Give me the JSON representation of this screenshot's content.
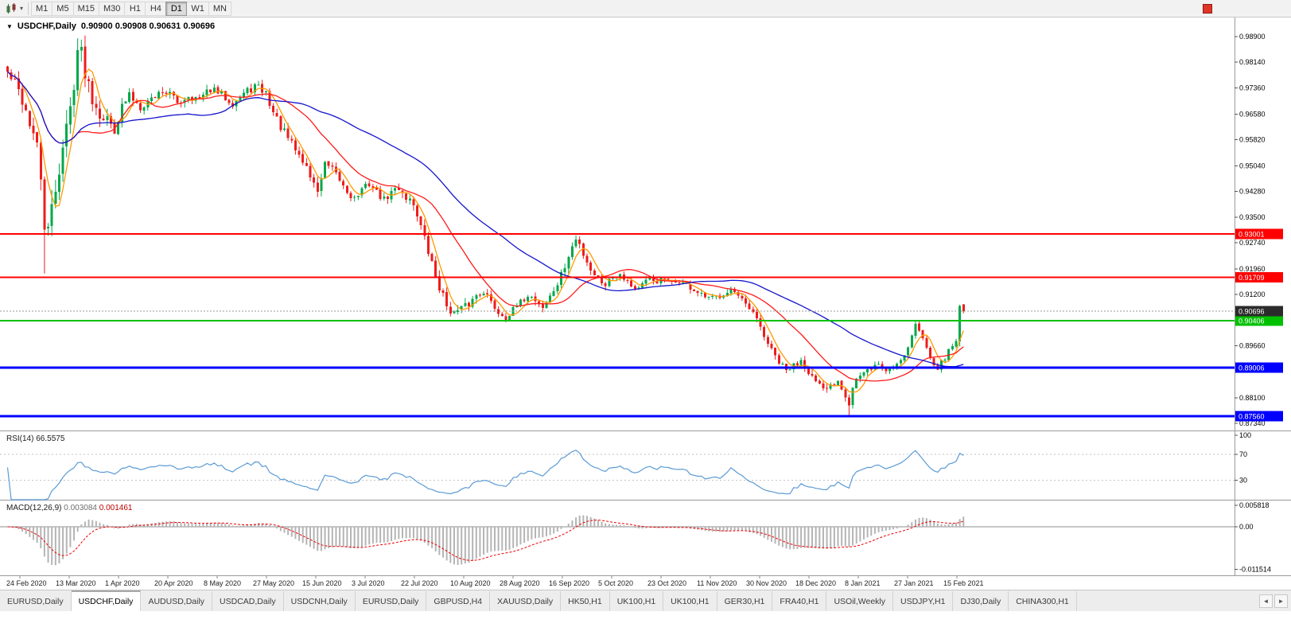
{
  "icons": {
    "dropdown_caret": "▾",
    "collapse_arrow": "▼",
    "scroll_left": "◄",
    "scroll_right": "►"
  },
  "toolbar": {
    "timeframes": [
      "M1",
      "M5",
      "M15",
      "M30",
      "H1",
      "H4",
      "D1",
      "W1",
      "MN"
    ],
    "active_timeframe": "D1"
  },
  "chart": {
    "symbol": "USDCHF,Daily",
    "ohlc_text": "0.90900 0.90908 0.90631 0.90696"
  },
  "indicators": {
    "rsi": {
      "label": "RSI(14)",
      "value_text": "66.5575"
    },
    "macd": {
      "label": "MACD(12,26,9)",
      "macd_value": "0.003084",
      "signal_value": "0.001461"
    }
  },
  "tabbar": {
    "active_index": 1,
    "tabs": [
      "EURUSD,Daily",
      "USDCHF,Daily",
      "AUDUSD,Daily",
      "USDCAD,Daily",
      "USDCNH,Daily",
      "EURUSD,Daily",
      "GBPUSD,H4",
      "XAUUSD,Daily",
      "HK50,H1",
      "UK100,H1",
      "UK100,H1",
      "GER30,H1",
      "FRA40,H1",
      "USOil,Weekly",
      "USDJPY,H1",
      "DJ30,Daily",
      "CHINA300,H1"
    ]
  },
  "chart_data": {
    "type": "candlestick",
    "symbol": "USDCHF",
    "timeframe": "Daily",
    "n_candles": 260,
    "ylim": [
      0.8713,
      0.9947
    ],
    "colors": {
      "bull": "#00a84a",
      "bear": "#ee1c1c",
      "bid_line": "#999999",
      "bid_tag": "#2b2b2b"
    },
    "price_ticks": [
      "0.98900",
      "0.98140",
      "0.97360",
      "0.96580",
      "0.95820",
      "0.95040",
      "0.94280",
      "0.93500",
      "0.92740",
      "0.91960",
      "0.91200",
      "0.89660",
      "0.88100",
      "0.87340"
    ],
    "date_labels": [
      "24 Feb 2020",
      "13 Mar 2020",
      "1 Apr 2020",
      "20 Apr 2020",
      "8 May 2020",
      "27 May 2020",
      "15 Jun 2020",
      "3 Jul 2020",
      "22 Jul 2020",
      "10 Aug 2020",
      "28 Aug 2020",
      "16 Sep 2020",
      "5 Oct 2020",
      "23 Oct 2020",
      "11 Nov 2020",
      "30 Nov 2020",
      "18 Dec 2020",
      "8 Jan 2021",
      "27 Jan 2021",
      "15 Feb 2021"
    ],
    "hlines": [
      {
        "price": 0.93001,
        "label": "0.93001",
        "color": "#ff0000",
        "width": 2
      },
      {
        "price": 0.91709,
        "label": "0.91709",
        "color": "#ff0000",
        "width": 2
      },
      {
        "price": 0.90406,
        "label": "0.90406",
        "color": "#00c000",
        "width": 2
      },
      {
        "price": 0.89006,
        "label": "0.89006",
        "color": "#0000ff",
        "width": 3
      },
      {
        "price": 0.8756,
        "label": "0.87560",
        "color": "#0000ff",
        "width": 3
      }
    ],
    "bid": {
      "price": 0.90696,
      "label": "0.90696"
    },
    "last_bar": {
      "open": 0.909,
      "high": 0.90908,
      "low": 0.90631,
      "close": 0.90696
    },
    "close_waypoints": [
      [
        0,
        0.9782
      ],
      [
        2,
        0.9748
      ],
      [
        4,
        0.9702
      ],
      [
        6,
        0.9635
      ],
      [
        8,
        0.9552
      ],
      [
        9,
        0.9465
      ],
      [
        10,
        0.933
      ],
      [
        11,
        0.9295
      ],
      [
        12,
        0.9372
      ],
      [
        13,
        0.944
      ],
      [
        15,
        0.9558
      ],
      [
        17,
        0.9675
      ],
      [
        19,
        0.9852
      ],
      [
        20,
        0.9838
      ],
      [
        21,
        0.9792
      ],
      [
        23,
        0.9712
      ],
      [
        25,
        0.9665
      ],
      [
        27,
        0.9641
      ],
      [
        29,
        0.9617
      ],
      [
        31,
        0.9678
      ],
      [
        33,
        0.9714
      ],
      [
        36,
        0.9682
      ],
      [
        39,
        0.9705
      ],
      [
        42,
        0.9729
      ],
      [
        44,
        0.9719
      ],
      [
        46,
        0.9691
      ],
      [
        49,
        0.9714
      ],
      [
        52,
        0.9701
      ],
      [
        55,
        0.9733
      ],
      [
        58,
        0.9716
      ],
      [
        61,
        0.9692
      ],
      [
        64,
        0.9719
      ],
      [
        67,
        0.9742
      ],
      [
        70,
        0.9721
      ],
      [
        72,
        0.9663
      ],
      [
        75,
        0.9601
      ],
      [
        78,
        0.9552
      ],
      [
        81,
        0.9501
      ],
      [
        83,
        0.9447
      ],
      [
        84,
        0.9432
      ],
      [
        85,
        0.9468
      ],
      [
        86,
        0.9507
      ],
      [
        88,
        0.9489
      ],
      [
        90,
        0.9461
      ],
      [
        92,
        0.9427
      ],
      [
        94,
        0.9406
      ],
      [
        96,
        0.9431
      ],
      [
        98,
        0.9452
      ],
      [
        100,
        0.9426
      ],
      [
        102,
        0.9401
      ],
      [
        104,
        0.9424
      ],
      [
        106,
        0.9439
      ],
      [
        108,
        0.9412
      ],
      [
        110,
        0.9391
      ],
      [
        111,
        0.9362
      ],
      [
        113,
        0.9282
      ],
      [
        115,
        0.9211
      ],
      [
        117,
        0.9142
      ],
      [
        119,
        0.9087
      ],
      [
        121,
        0.9062
      ],
      [
        123,
        0.9076
      ],
      [
        125,
        0.9091
      ],
      [
        127,
        0.9118
      ],
      [
        129,
        0.9133
      ],
      [
        131,
        0.9096
      ],
      [
        133,
        0.9066
      ],
      [
        135,
        0.9052
      ],
      [
        137,
        0.9071
      ],
      [
        139,
        0.9094
      ],
      [
        141,
        0.9119
      ],
      [
        143,
        0.9104
      ],
      [
        145,
        0.9081
      ],
      [
        147,
        0.9112
      ],
      [
        149,
        0.9151
      ],
      [
        151,
        0.9202
      ],
      [
        153,
        0.9261
      ],
      [
        154,
        0.9283
      ],
      [
        155,
        0.9268
      ],
      [
        156,
        0.9241
      ],
      [
        158,
        0.9196
      ],
      [
        160,
        0.9166
      ],
      [
        162,
        0.9151
      ],
      [
        164,
        0.9174
      ],
      [
        166,
        0.9184
      ],
      [
        168,
        0.9161
      ],
      [
        170,
        0.9136
      ],
      [
        172,
        0.9149
      ],
      [
        174,
        0.9164
      ],
      [
        176,
        0.9159
      ],
      [
        178,
        0.9164
      ],
      [
        180,
        0.9151
      ],
      [
        182,
        0.9161
      ],
      [
        184,
        0.9146
      ],
      [
        186,
        0.9131
      ],
      [
        188,
        0.9116
      ],
      [
        190,
        0.9106
      ],
      [
        192,
        0.9111
      ],
      [
        194,
        0.9124
      ],
      [
        196,
        0.9136
      ],
      [
        198,
        0.9111
      ],
      [
        200,
        0.9086
      ],
      [
        202,
        0.9061
      ],
      [
        204,
        0.9021
      ],
      [
        205,
        0.8996
      ],
      [
        207,
        0.8951
      ],
      [
        209,
        0.8916
      ],
      [
        211,
        0.8891
      ],
      [
        213,
        0.8906
      ],
      [
        215,
        0.8926
      ],
      [
        217,
        0.8891
      ],
      [
        219,
        0.8856
      ],
      [
        221,
        0.8831
      ],
      [
        223,
        0.8846
      ],
      [
        225,
        0.8866
      ],
      [
        227,
        0.8821
      ],
      [
        228,
        0.8792
      ],
      [
        229,
        0.8841
      ],
      [
        230,
        0.8866
      ],
      [
        232,
        0.8881
      ],
      [
        234,
        0.8901
      ],
      [
        236,
        0.8911
      ],
      [
        238,
        0.8891
      ],
      [
        240,
        0.8906
      ],
      [
        242,
        0.8926
      ],
      [
        244,
        0.8961
      ],
      [
        245,
        0.9001
      ],
      [
        246,
        0.9031
      ],
      [
        247,
        0.9011
      ],
      [
        248,
        0.8986
      ],
      [
        249,
        0.8961
      ],
      [
        250,
        0.8936
      ],
      [
        251,
        0.8916
      ],
      [
        252,
        0.8901
      ],
      [
        253,
        0.8916
      ],
      [
        254,
        0.8931
      ],
      [
        255,
        0.8951
      ],
      [
        256,
        0.8966
      ],
      [
        257,
        0.8981
      ],
      [
        258,
        0.9085
      ],
      [
        259,
        0.90696
      ]
    ],
    "volatility_waypoints": [
      [
        0,
        0.0045
      ],
      [
        8,
        0.0075
      ],
      [
        12,
        0.009
      ],
      [
        20,
        0.008
      ],
      [
        26,
        0.0052
      ],
      [
        35,
        0.0033
      ],
      [
        60,
        0.0028
      ],
      [
        72,
        0.0036
      ],
      [
        85,
        0.0033
      ],
      [
        100,
        0.0026
      ],
      [
        112,
        0.0042
      ],
      [
        120,
        0.0032
      ],
      [
        140,
        0.0026
      ],
      [
        152,
        0.0032
      ],
      [
        165,
        0.0024
      ],
      [
        180,
        0.0022
      ],
      [
        200,
        0.0024
      ],
      [
        212,
        0.0028
      ],
      [
        226,
        0.0026
      ],
      [
        240,
        0.002
      ],
      [
        250,
        0.0022
      ],
      [
        259,
        0.0018
      ]
    ],
    "pinned_candles": {
      "10": {
        "low": 0.9182
      },
      "19": {
        "high": 0.9885
      },
      "154": {
        "high": 0.9296
      },
      "177": {
        "high": 0.9171
      },
      "179": {
        "high": 0.9173
      },
      "228": {
        "low": 0.8757
      },
      "246": {
        "high": 0.9041
      },
      "258": {
        "open": 0.8979,
        "close": 0.9085,
        "high": 0.9089,
        "low": 0.8964
      },
      "259": {
        "open": 0.909,
        "high": 0.90908,
        "low": 0.90631,
        "close": 0.90696
      }
    },
    "moving_averages": [
      {
        "period": 5,
        "color": "#ff9900"
      },
      {
        "period": 20,
        "color": "#ff1a1a"
      },
      {
        "period": 50,
        "color": "#1414cc"
      }
    ],
    "rsi": {
      "period": 14,
      "levels": [
        30,
        70
      ],
      "ticks": [
        "100",
        "70",
        "30"
      ],
      "scale_range": [
        0,
        106
      ],
      "color": "#5b9bd5"
    },
    "macd": {
      "fast": 12,
      "slow": 26,
      "signal": 9,
      "ylim": [
        -0.01314,
        0.00711
      ],
      "ticks": [
        "0.005818",
        "0.00",
        "-0.011514"
      ],
      "hist_color": "#b4b4b4",
      "signal_color": "#ee0000"
    }
  }
}
